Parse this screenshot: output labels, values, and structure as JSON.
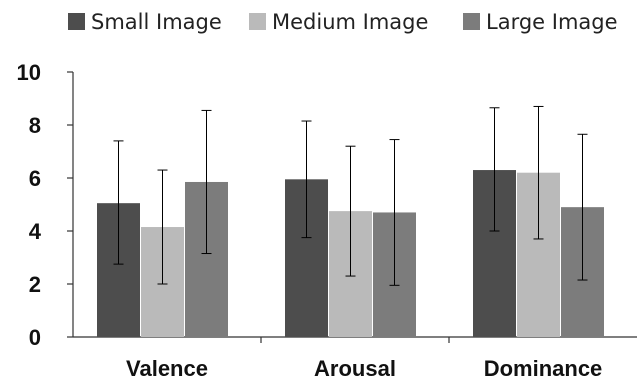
{
  "chart_data": {
    "type": "bar",
    "categories": [
      "Valence",
      "Arousal",
      "Dominance"
    ],
    "series": [
      {
        "name": "Small Image",
        "color": "#4d4d4d",
        "values": [
          5.05,
          5.95,
          6.3
        ],
        "error": [
          [
            2.75,
            7.4
          ],
          [
            3.75,
            8.15
          ],
          [
            4.0,
            8.65
          ]
        ]
      },
      {
        "name": "Medium Image",
        "color": "#bababa",
        "values": [
          4.15,
          4.75,
          6.2
        ],
        "error": [
          [
            2.0,
            6.3
          ],
          [
            2.3,
            7.2
          ],
          [
            3.7,
            8.7
          ]
        ]
      },
      {
        "name": "Large Image",
        "color": "#7c7c7c",
        "values": [
          5.85,
          4.7,
          4.9
        ],
        "error": [
          [
            3.15,
            8.55
          ],
          [
            1.95,
            7.45
          ],
          [
            2.15,
            7.65
          ]
        ]
      }
    ],
    "ylim": [
      0,
      10
    ],
    "yticks": [
      "0",
      "2",
      "4",
      "6",
      "8",
      "10"
    ],
    "legend_position": "top",
    "grid": false
  }
}
